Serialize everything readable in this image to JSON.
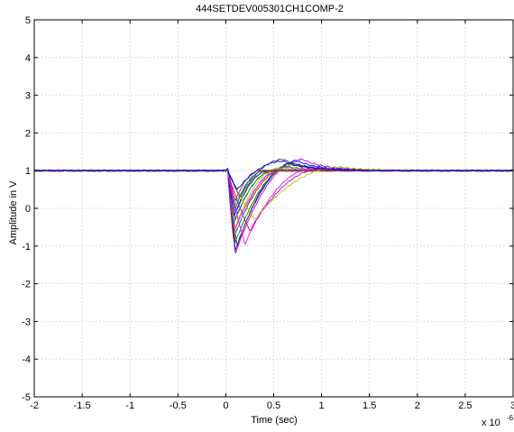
{
  "chart_data": {
    "type": "line",
    "title": "444SETDEV005301CH1COMP-2",
    "xlabel": "Time (sec)",
    "ylabel": "Amplitude in V",
    "x_scale_label": "x 10",
    "x_scale_exponent": "-6",
    "xlim": [
      -2,
      3
    ],
    "ylim": [
      -5,
      5
    ],
    "x_ticks": [
      "-2",
      "-1.5",
      "-1",
      "-0.5",
      "0",
      "0.5",
      "1",
      "1.5",
      "2",
      "2.5",
      "3"
    ],
    "y_ticks": [
      "-5",
      "-4",
      "-3",
      "-2",
      "-1",
      "0",
      "1",
      "2",
      "3",
      "4",
      "5"
    ],
    "grid": true,
    "baseline": 1.0,
    "series_colors": [
      "#0000ff",
      "#007f00",
      "#ff0000",
      "#00bfbf",
      "#bf00bf",
      "#bfbf00",
      "#3f3f3f",
      "#ff00ff",
      "#4040ff",
      "#00a000"
    ],
    "series": [
      {
        "min": -1.2,
        "min_t": 0.1,
        "overshoot": 1.3,
        "recovery_t": 0.8,
        "color_index": 4
      },
      {
        "min": -1.1,
        "min_t": 0.1,
        "overshoot": 1.25,
        "recovery_t": 0.75,
        "color_index": 0
      },
      {
        "min": -1.0,
        "min_t": 0.12,
        "overshoot": 1.2,
        "recovery_t": 0.7,
        "color_index": 6
      },
      {
        "min": -0.9,
        "min_t": 0.1,
        "overshoot": 1.15,
        "recovery_t": 0.7,
        "color_index": 1
      },
      {
        "min": -0.8,
        "min_t": 0.08,
        "overshoot": 1.1,
        "recovery_t": 0.65,
        "color_index": 2
      },
      {
        "min": -0.7,
        "min_t": 0.1,
        "overshoot": 1.1,
        "recovery_t": 0.6,
        "color_index": 3
      },
      {
        "min": -0.6,
        "min_t": 0.09,
        "overshoot": 1.05,
        "recovery_t": 0.6,
        "color_index": 7
      },
      {
        "min": -0.5,
        "min_t": 0.1,
        "overshoot": 1.05,
        "recovery_t": 0.55,
        "color_index": 5
      },
      {
        "min": -0.4,
        "min_t": 0.08,
        "overshoot": 1.0,
        "recovery_t": 0.5,
        "color_index": 8
      },
      {
        "min": -0.3,
        "min_t": 0.1,
        "overshoot": 1.0,
        "recovery_t": 0.5,
        "color_index": 9
      },
      {
        "min": -0.2,
        "min_t": 0.09,
        "overshoot": 1.0,
        "recovery_t": 0.45,
        "color_index": 0
      },
      {
        "min": -0.1,
        "min_t": 0.1,
        "overshoot": 1.0,
        "recovery_t": 0.45,
        "color_index": 6
      },
      {
        "min": 0.0,
        "min_t": 0.1,
        "overshoot": 1.0,
        "recovery_t": 0.4,
        "color_index": 1
      },
      {
        "min": 0.1,
        "min_t": 0.1,
        "overshoot": 1.0,
        "recovery_t": 0.4,
        "color_index": 3
      },
      {
        "min": 0.2,
        "min_t": 0.1,
        "overshoot": 1.0,
        "recovery_t": 0.35,
        "color_index": 2
      },
      {
        "min": -0.95,
        "min_t": 0.2,
        "overshoot": 1.05,
        "recovery_t": 0.9,
        "color_index": 7
      },
      {
        "min": -0.6,
        "min_t": 0.25,
        "overshoot": 1.05,
        "recovery_t": 1.0,
        "color_index": 4
      },
      {
        "min": -0.3,
        "min_t": 0.3,
        "overshoot": 1.1,
        "recovery_t": 1.2,
        "color_index": 5
      },
      {
        "min": 0.3,
        "min_t": 0.15,
        "overshoot": 1.3,
        "recovery_t": 0.6,
        "color_index": 6
      },
      {
        "min": 0.5,
        "min_t": 0.12,
        "overshoot": 1.25,
        "recovery_t": 0.6,
        "color_index": 0
      }
    ]
  }
}
